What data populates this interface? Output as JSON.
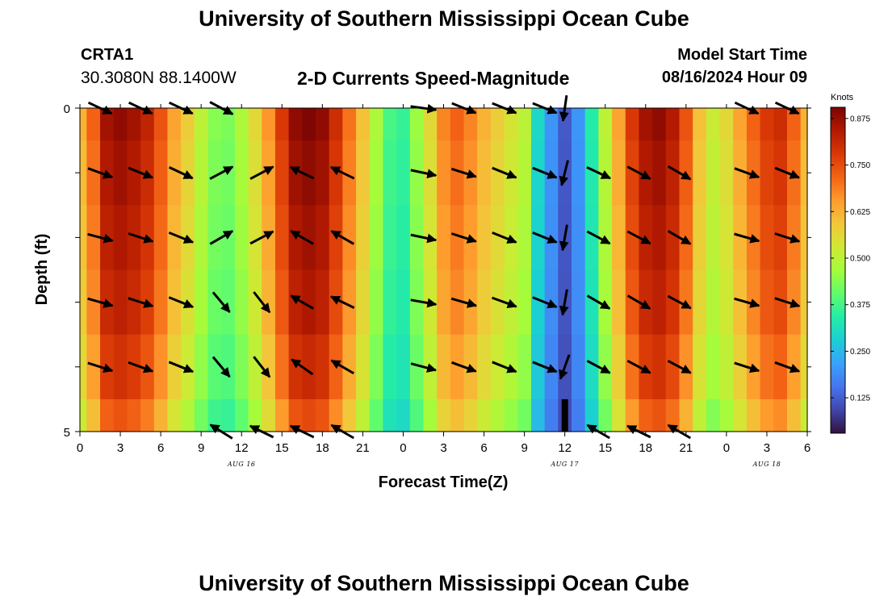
{
  "header": {
    "title": "University of Southern Mississippi Ocean Cube",
    "station_id": "CRTA1",
    "station_coords": "30.3080N  88.1400W",
    "product": "2-D Currents Speed-Magnitude",
    "model_label": "Model Start Time",
    "model_time": "08/16/2024 Hour 09"
  },
  "footer": {
    "title": "University of Southern Mississippi Ocean Cube"
  },
  "chart_data": {
    "type": "heatmap",
    "xlabel": "Forecast Time(Z)",
    "ylabel": "Depth (ft)",
    "x_hours": [
      0,
      1,
      2,
      3,
      4,
      5,
      6,
      7,
      8,
      9,
      10,
      11,
      12,
      13,
      14,
      15,
      16,
      17,
      18,
      19,
      20,
      21,
      22,
      23,
      24,
      25,
      26,
      27,
      28,
      29,
      30,
      31,
      32,
      33,
      34,
      35,
      36,
      37,
      38,
      39,
      40,
      41,
      42,
      43,
      44,
      45,
      46,
      47,
      48,
      49,
      50,
      51,
      52,
      53,
      54
    ],
    "x_range": [
      0,
      54
    ],
    "x_ticks": [
      {
        "hour": 0,
        "label": "0"
      },
      {
        "hour": 3,
        "label": "3"
      },
      {
        "hour": 6,
        "label": "6"
      },
      {
        "hour": 9,
        "label": "9"
      },
      {
        "hour": 12,
        "label": "12"
      },
      {
        "hour": 15,
        "label": "15"
      },
      {
        "hour": 18,
        "label": "18"
      },
      {
        "hour": 21,
        "label": "21"
      },
      {
        "hour": 24,
        "label": "0"
      },
      {
        "hour": 27,
        "label": "3"
      },
      {
        "hour": 30,
        "label": "6"
      },
      {
        "hour": 33,
        "label": "9"
      },
      {
        "hour": 36,
        "label": "12"
      },
      {
        "hour": 39,
        "label": "15"
      },
      {
        "hour": 42,
        "label": "18"
      },
      {
        "hour": 45,
        "label": "21"
      },
      {
        "hour": 48,
        "label": "0"
      },
      {
        "hour": 51,
        "label": "3"
      },
      {
        "hour": 54,
        "label": "6"
      }
    ],
    "date_labels": [
      {
        "hour": 12,
        "label": "AUG 16"
      },
      {
        "hour": 36,
        "label": "AUG 17"
      },
      {
        "hour": 51,
        "label": "AUG 18"
      }
    ],
    "y_range": [
      0,
      5
    ],
    "y_ticks": [
      "0",
      "5"
    ],
    "depth_levels": [
      0,
      1,
      2,
      3,
      4,
      5
    ],
    "speed_knots": [
      0.62,
      0.72,
      0.86,
      0.88,
      0.86,
      0.82,
      0.74,
      0.64,
      0.58,
      0.5,
      0.44,
      0.43,
      0.48,
      0.56,
      0.66,
      0.78,
      0.88,
      0.9,
      0.88,
      0.8,
      0.7,
      0.6,
      0.48,
      0.38,
      0.36,
      0.46,
      0.56,
      0.68,
      0.72,
      0.68,
      0.62,
      0.58,
      0.54,
      0.5,
      0.3,
      0.2,
      0.12,
      0.2,
      0.34,
      0.5,
      0.64,
      0.78,
      0.86,
      0.88,
      0.84,
      0.74,
      0.6,
      0.52,
      0.56,
      0.64,
      0.72,
      0.78,
      0.8,
      0.72,
      0.62
    ],
    "depth_factor": [
      1.0,
      0.98,
      0.96,
      0.94,
      0.9,
      0.84
    ],
    "low_speed_cells": [
      {
        "hour": 36,
        "depth_from": 4.5,
        "depth_to": 5
      }
    ],
    "arrow_hours": [
      1.5,
      4.5,
      7.5,
      10.5,
      13.5,
      16.5,
      19.5,
      25.5,
      28.5,
      31.5,
      34.5,
      36,
      38.5,
      41.5,
      44.5,
      49.5,
      52.5
    ],
    "arrow_depths": [
      0,
      1,
      2,
      3,
      4,
      5
    ],
    "arrow_direction_deg": [
      [
        115,
        115,
        115,
        118,
        null,
        null,
        null,
        98,
        112,
        112,
        112,
        188,
        null,
        null,
        null,
        115,
        115
      ],
      [
        110,
        112,
        115,
        62,
        62,
        296,
        296,
        102,
        108,
        112,
        112,
        194,
        115,
        118,
        120,
        110,
        112
      ],
      [
        105,
        108,
        112,
        60,
        62,
        300,
        300,
        102,
        108,
        112,
        112,
        190,
        118,
        118,
        120,
        106,
        108
      ],
      [
        106,
        108,
        112,
        140,
        142,
        300,
        296,
        100,
        106,
        110,
        112,
        190,
        120,
        120,
        118,
        106,
        108
      ],
      [
        108,
        110,
        112,
        140,
        142,
        305,
        300,
        105,
        110,
        112,
        112,
        200,
        118,
        118,
        118,
        108,
        110
      ],
      [
        null,
        null,
        null,
        302,
        296,
        296,
        300,
        null,
        null,
        null,
        null,
        null,
        300,
        296,
        300,
        null,
        null
      ]
    ],
    "colorbar": {
      "title": "Knots",
      "range": [
        0.03,
        0.905
      ],
      "ticks": [
        "0.125",
        "0.250",
        "0.375",
        "0.500",
        "0.625",
        "0.750",
        "0.875"
      ],
      "tick_values": [
        0.125,
        0.25,
        0.375,
        0.5,
        0.625,
        0.75,
        0.875
      ],
      "colormap": [
        "#30123b",
        "#4145ab",
        "#4675ed",
        "#39a2fc",
        "#1bcfd4",
        "#24eca6",
        "#61fc6c",
        "#a4fc3b",
        "#d1e834",
        "#f3c63a",
        "#fe9b2d",
        "#f36315",
        "#d93806",
        "#b11901",
        "#7a0403"
      ]
    },
    "grid": false
  }
}
